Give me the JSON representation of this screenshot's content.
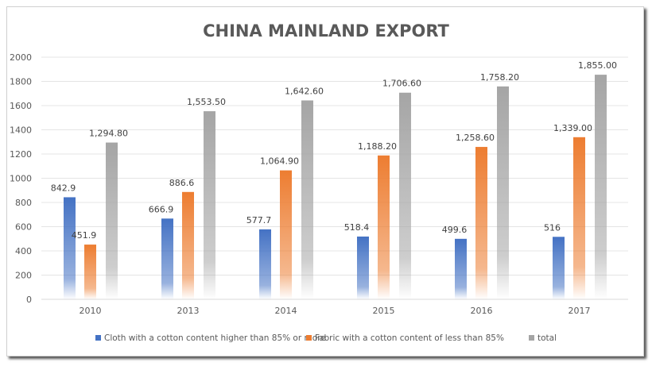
{
  "chart_data": {
    "type": "bar",
    "title": "CHINA MAINLAND EXPORT",
    "xlabel": "",
    "ylabel": "",
    "ylim": [
      0,
      2000
    ],
    "yticks": [
      "0",
      "200",
      "400",
      "600",
      "800",
      "1000",
      "1200",
      "1400",
      "1600",
      "1800",
      "2000"
    ],
    "grid": true,
    "legend_position": "bottom",
    "categories": [
      "2010",
      "2013",
      "2014",
      "2015",
      "2016",
      "2017"
    ],
    "series": [
      {
        "name": "Cloth with a cotton content higher than 85% or more",
        "color": "#4472c4",
        "values": [
          842.9,
          666.9,
          577.7,
          518.4,
          499.6,
          516
        ],
        "labels": [
          "842.9",
          "666.9",
          "577.7",
          "518.4",
          "499.6",
          "516"
        ]
      },
      {
        "name": "Fabric with a cotton content of less than 85%",
        "color": "#ed7d31",
        "values": [
          451.9,
          886.6,
          1064.9,
          1188.2,
          1258.6,
          1339.0
        ],
        "labels": [
          "451.9",
          "886.6",
          "1,064.90",
          "1,188.20",
          "1,258.60",
          "1,339.00"
        ]
      },
      {
        "name": "total",
        "color": "#a5a5a5",
        "values": [
          1294.8,
          1553.5,
          1642.6,
          1706.6,
          1758.2,
          1855.0
        ],
        "labels": [
          "1,294.80",
          "1,553.50",
          "1,642.60",
          "1,706.60",
          "1,758.20",
          "1,855.00"
        ]
      }
    ]
  }
}
